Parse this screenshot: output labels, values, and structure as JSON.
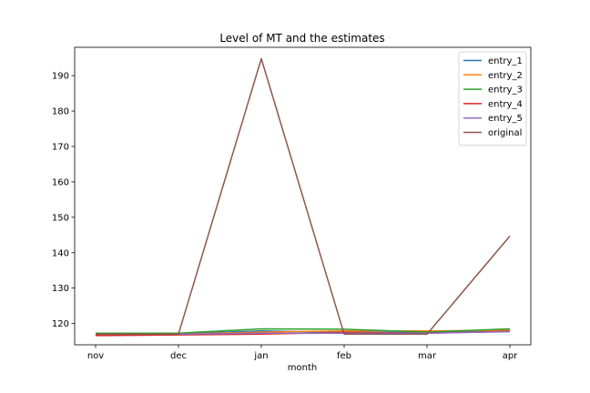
{
  "chart_data": {
    "type": "line",
    "title": "Level of MT and the estimates",
    "xlabel": "month",
    "ylabel": "",
    "categories": [
      "nov",
      "dec",
      "jan",
      "feb",
      "mar",
      "apr"
    ],
    "ylim": [
      114.0,
      198.0
    ],
    "yticks": [
      120,
      130,
      140,
      150,
      160,
      170,
      180,
      190
    ],
    "grid": false,
    "legend_position": "top-right",
    "series": [
      {
        "name": "entry_1",
        "color": "#1f77b4",
        "values": [
          117.1,
          117.1,
          117.9,
          117.5,
          117.5,
          118.0
        ]
      },
      {
        "name": "entry_2",
        "color": "#ff7f0e",
        "values": [
          116.9,
          117.0,
          117.6,
          117.9,
          117.9,
          118.1
        ]
      },
      {
        "name": "entry_3",
        "color": "#2ca02c",
        "values": [
          117.3,
          117.3,
          118.5,
          118.4,
          117.6,
          118.5
        ]
      },
      {
        "name": "entry_4",
        "color": "#d62728",
        "values": [
          116.6,
          116.8,
          117.0,
          117.5,
          117.3,
          117.8
        ]
      },
      {
        "name": "entry_5",
        "color": "#9467bd",
        "values": [
          117.0,
          117.0,
          117.3,
          117.3,
          117.3,
          117.7
        ]
      },
      {
        "name": "original",
        "color": "#8c564b",
        "values": [
          117.0,
          117.0,
          194.8,
          117.0,
          117.0,
          144.7
        ]
      }
    ]
  }
}
